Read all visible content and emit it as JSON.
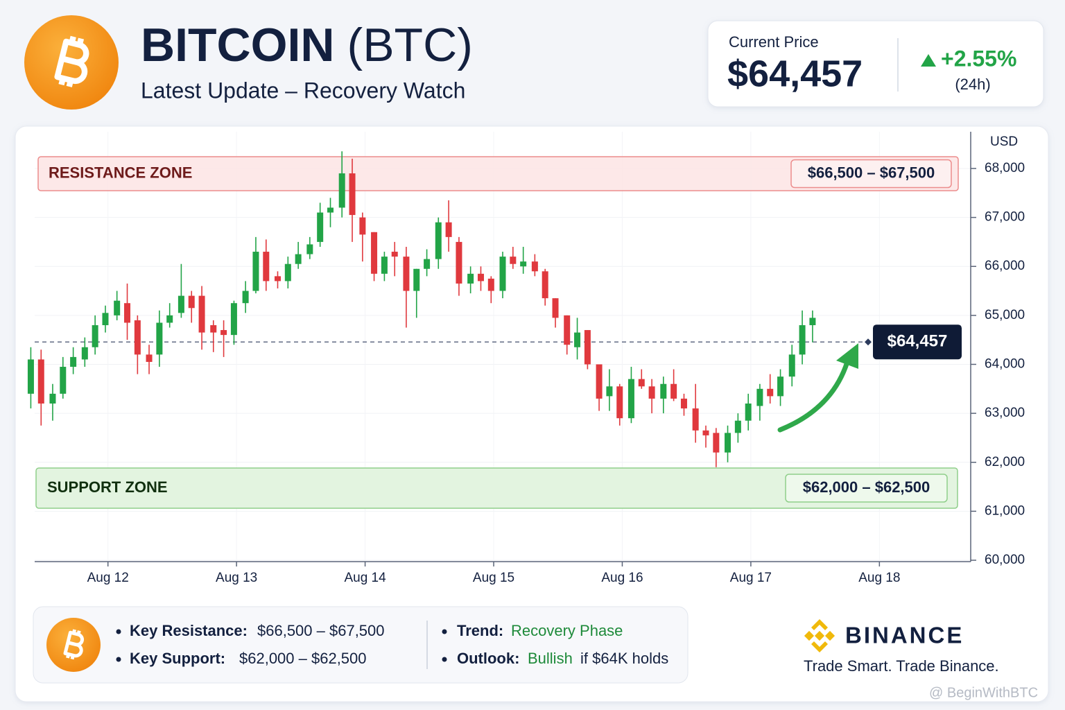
{
  "header": {
    "title": "BITCOIN",
    "ticker": "(BTC)",
    "subtitle": "Latest Update – Recovery Watch"
  },
  "price_card": {
    "label": "Current Price",
    "price": "$64,457",
    "change": "+2.55%",
    "period": "(24h)"
  },
  "chart_data": {
    "type": "candlestick",
    "y_axis_label": "USD",
    "x": [
      11.4,
      11.48,
      11.57,
      11.65,
      11.73,
      11.82,
      11.9,
      11.98,
      12.07,
      12.15,
      12.23,
      12.32,
      12.4,
      12.48,
      12.57,
      12.65,
      12.73,
      12.82,
      12.9,
      12.98,
      13.07,
      13.15,
      13.23,
      13.32,
      13.4,
      13.48,
      13.57,
      13.65,
      13.73,
      13.82,
      13.9,
      13.98,
      14.07,
      14.15,
      14.23,
      14.32,
      14.4,
      14.48,
      14.57,
      14.65,
      14.73,
      14.82,
      14.9,
      14.98,
      15.07,
      15.15,
      15.23,
      15.32,
      15.4,
      15.48,
      15.57,
      15.65,
      15.73,
      15.82,
      15.9,
      15.98,
      16.07,
      16.15,
      16.23,
      16.32,
      16.4,
      16.48,
      16.57,
      16.65,
      16.73,
      16.82,
      16.9,
      16.98,
      17.07,
      17.15,
      17.23,
      17.32,
      17.4,
      17.48
    ],
    "open": [
      63400,
      64100,
      63200,
      63400,
      63950,
      64100,
      64350,
      64800,
      65000,
      65250,
      64900,
      64200,
      64200,
      64850,
      65050,
      65400,
      65400,
      64800,
      64700,
      64600,
      65250,
      65500,
      66300,
      65800,
      65700,
      66050,
      66250,
      66500,
      67100,
      67200,
      67900,
      67000,
      66700,
      65850,
      66300,
      66200,
      65500,
      65950,
      66150,
      66900,
      66500,
      65650,
      65850,
      65750,
      65500,
      66200,
      66000,
      66100,
      65900,
      65350,
      65000,
      64350,
      64700,
      64000,
      63350,
      63550,
      62900,
      63700,
      63550,
      63300,
      63600,
      63300,
      63100,
      62650,
      62600,
      62200,
      62600,
      62850,
      63150,
      63500,
      63350,
      63750,
      64200,
      64800
    ],
    "high": [
      64350,
      64300,
      63600,
      64150,
      64350,
      64550,
      65000,
      65200,
      65500,
      65650,
      65000,
      64400,
      65100,
      65250,
      66050,
      65500,
      65600,
      64900,
      64900,
      65300,
      65700,
      66600,
      66550,
      65900,
      66200,
      66500,
      66600,
      67300,
      67400,
      68350,
      68200,
      67100,
      66700,
      66300,
      66500,
      66400,
      65950,
      66350,
      67000,
      67350,
      66600,
      66000,
      66000,
      65800,
      66300,
      66400,
      66400,
      66250,
      65950,
      65350,
      65000,
      64950,
      64700,
      64000,
      63900,
      63600,
      63950,
      63900,
      63700,
      63750,
      63900,
      63400,
      63600,
      62750,
      62700,
      62750,
      63000,
      63400,
      63600,
      63800,
      63900,
      64400,
      65100,
      65100
    ],
    "low": [
      63100,
      62750,
      62850,
      63300,
      63800,
      63950,
      64200,
      64650,
      64900,
      64500,
      63800,
      63800,
      63950,
      64750,
      64950,
      64850,
      64300,
      64250,
      64150,
      64400,
      65050,
      65450,
      65500,
      65550,
      65550,
      65950,
      66150,
      66400,
      66800,
      67000,
      66500,
      66100,
      65700,
      65700,
      65800,
      64750,
      64950,
      65800,
      65950,
      66300,
      65400,
      65450,
      65500,
      65250,
      65350,
      65950,
      65850,
      65800,
      65200,
      64750,
      64200,
      64100,
      63900,
      63050,
      63050,
      62750,
      62800,
      63500,
      63000,
      63000,
      63250,
      62950,
      62400,
      62300,
      61900,
      62000,
      62400,
      62650,
      62850,
      63200,
      63150,
      63550,
      64000,
      64450
    ],
    "close": [
      64100,
      63200,
      63400,
      63950,
      64150,
      64350,
      64800,
      65050,
      65300,
      64850,
      64200,
      64050,
      64850,
      65000,
      65400,
      65150,
      64650,
      64650,
      64600,
      65250,
      65500,
      66300,
      65700,
      65700,
      66050,
      66250,
      66450,
      67100,
      67200,
      67900,
      67050,
      66650,
      65850,
      66200,
      66200,
      65500,
      65950,
      66150,
      66900,
      66600,
      65650,
      65850,
      65700,
      65500,
      66200,
      66050,
      66100,
      65900,
      65350,
      64950,
      64400,
      64650,
      64000,
      63300,
      63550,
      62900,
      63700,
      63550,
      63300,
      63600,
      63300,
      63100,
      62650,
      62550,
      62200,
      62600,
      62850,
      63200,
      63500,
      63350,
      63750,
      64200,
      64800,
      64950
    ],
    "up_color": "#22a447",
    "down_color": "#e0393e",
    "xlim": [
      11.43,
      18.71
    ],
    "xticks": [
      {
        "value": 12,
        "label": "Aug 12"
      },
      {
        "value": 13,
        "label": "Aug 13"
      },
      {
        "value": 14,
        "label": "Aug 14"
      },
      {
        "value": 15,
        "label": "Aug 15"
      },
      {
        "value": 16,
        "label": "Aug 16"
      },
      {
        "value": 17,
        "label": "Aug 17"
      },
      {
        "value": 18,
        "label": "Aug 18"
      }
    ],
    "ylim": [
      60000,
      68750
    ],
    "yticks": [
      {
        "value": 60000,
        "label": "60,000"
      },
      {
        "value": 61000,
        "label": "61,000"
      },
      {
        "value": 62000,
        "label": "62,000"
      },
      {
        "value": 63000,
        "label": "63,000"
      },
      {
        "value": 64000,
        "label": "64,000"
      },
      {
        "value": 65000,
        "label": "65,000"
      },
      {
        "value": 66000,
        "label": "66,000"
      },
      {
        "value": 67000,
        "label": "67,000"
      },
      {
        "value": 68000,
        "label": "68,000"
      }
    ],
    "grid": true,
    "current_price": {
      "value": 64457,
      "label": "$64,457"
    },
    "zones": [
      {
        "name": "RESISTANCE ZONE",
        "range_label": "$66,500 – $67,500"
      },
      {
        "name": "SUPPORT ZONE",
        "range_label": "$62,000 – $62,500"
      }
    ]
  },
  "summary": {
    "resistance_label": "Key Resistance:",
    "resistance_value": "$66,500 – $67,500",
    "support_label": "Key Support:",
    "support_value": "$62,000 – $62,500",
    "trend_label": "Trend:",
    "trend_value": "Recovery Phase",
    "outlook_label": "Outlook:",
    "outlook_value": "Bullish",
    "outlook_condition": "if $64K holds"
  },
  "brand": {
    "name": "BINANCE",
    "tagline": "Trade Smart. Trade Binance."
  },
  "watermark": "@ BeginWithBTC"
}
